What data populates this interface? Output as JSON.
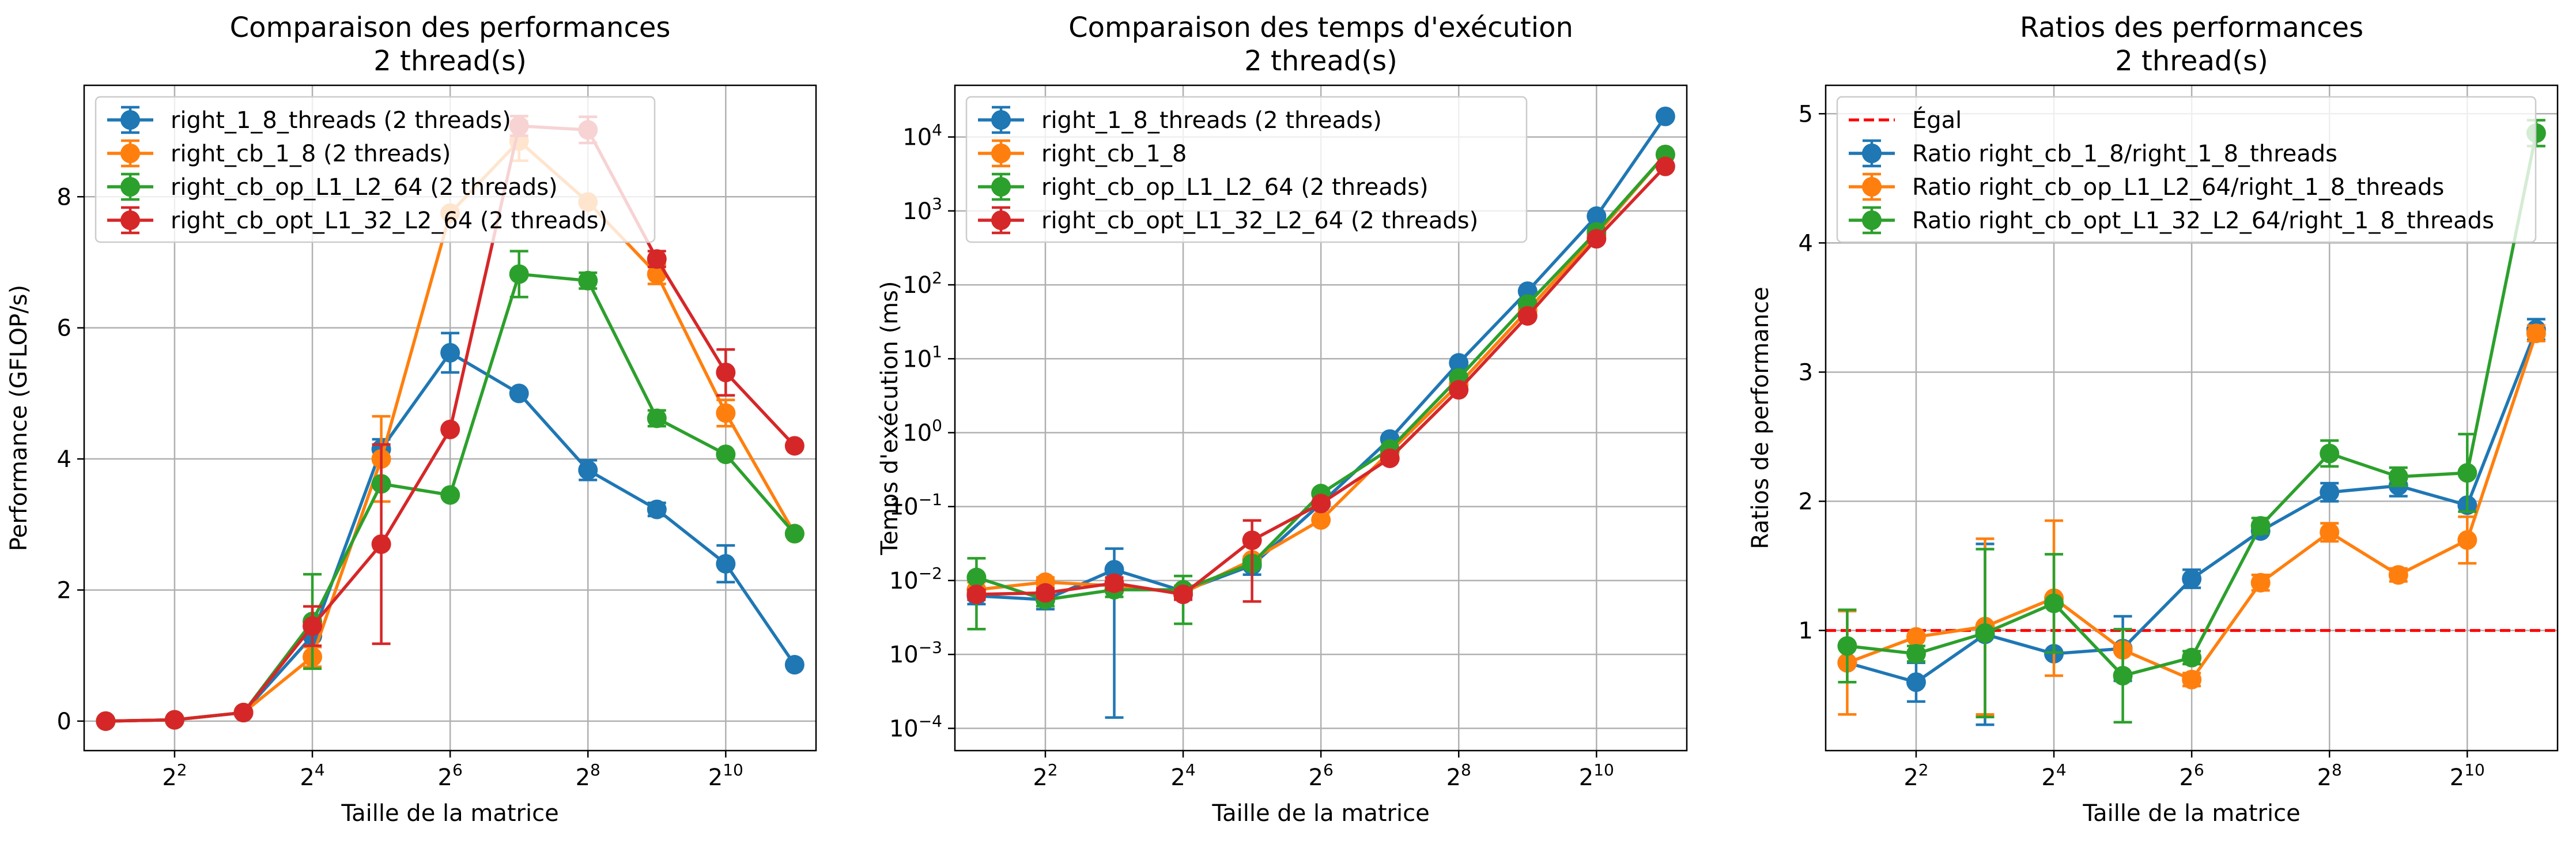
{
  "chart_data": [
    {
      "type": "line",
      "title": "Comparaison des performances",
      "subtitle": "2 thread(s)",
      "xlabel": "Taille de la matrice",
      "ylabel": "Performance (GFLOP/s)",
      "x_scale": "log2",
      "y_scale": "linear",
      "x": [
        2,
        4,
        8,
        16,
        32,
        64,
        128,
        256,
        512,
        1024,
        2048
      ],
      "x_ticks": [
        4,
        16,
        64,
        256,
        1024
      ],
      "x_tick_labels": [
        {
          "base": "2",
          "exp": "2"
        },
        {
          "base": "2",
          "exp": "4"
        },
        {
          "base": "2",
          "exp": "6"
        },
        {
          "base": "2",
          "exp": "8"
        },
        {
          "base": "2",
          "exp": "10"
        }
      ],
      "xlim": [
        1.61,
        2540
      ],
      "ylim": [
        -0.45,
        9.7
      ],
      "y_ticks": [
        0,
        2,
        4,
        6,
        8
      ],
      "y_tick_labels": [
        "0",
        "2",
        "4",
        "6",
        "8"
      ],
      "grid": true,
      "legend_position": "upper-left",
      "series": [
        {
          "name": "right_1_8_threads (2 threads)",
          "color": "#1f77b4",
          "values": [
            0.0,
            0.02,
            0.13,
            1.3,
            4.15,
            5.62,
            5.0,
            3.83,
            3.23,
            2.4,
            0.86
          ],
          "err": [
            0.0,
            0.0,
            0.0,
            0.15,
            0.15,
            0.3,
            0.0,
            0.15,
            0.1,
            0.28,
            0.0
          ]
        },
        {
          "name": "right_cb_1_8 (2 threads)",
          "color": "#ff7f0e",
          "values": [
            0.0,
            0.02,
            0.13,
            0.98,
            4.0,
            7.75,
            8.85,
            7.92,
            6.82,
            4.7,
            2.86
          ],
          "err": [
            0.0,
            0.0,
            0.0,
            0.15,
            0.65,
            0.0,
            0.3,
            0.0,
            0.15,
            0.2,
            0.0
          ]
        },
        {
          "name": "right_cb_op_L1_L2_64 (2 threads)",
          "color": "#2ca02c",
          "values": [
            0.0,
            0.02,
            0.13,
            1.52,
            3.62,
            3.45,
            6.82,
            6.72,
            4.62,
            4.07,
            2.86
          ],
          "err": [
            0.0,
            0.0,
            0.0,
            0.72,
            0.0,
            0.0,
            0.35,
            0.12,
            0.12,
            0.0,
            0.0
          ]
        },
        {
          "name": "right_cb_opt_L1_32_L2_64 (2 threads)",
          "color": "#d62728",
          "values": [
            0.0,
            0.02,
            0.13,
            1.45,
            2.7,
            4.45,
            9.08,
            9.02,
            7.05,
            5.32,
            4.2
          ],
          "err": [
            0.0,
            0.0,
            0.0,
            0.3,
            1.52,
            0.0,
            0.15,
            0.2,
            0.12,
            0.35,
            0.0
          ]
        }
      ]
    },
    {
      "type": "line",
      "title": "Comparaison des temps d'exécution",
      "subtitle": "2 thread(s)",
      "xlabel": "Taille de la matrice",
      "ylabel": "Temps d'exécution (ms)",
      "x_scale": "log2",
      "y_scale": "log10",
      "x": [
        2,
        4,
        8,
        16,
        32,
        64,
        128,
        256,
        512,
        1024,
        2048
      ],
      "x_ticks": [
        4,
        16,
        64,
        256,
        1024
      ],
      "x_tick_labels": [
        {
          "base": "2",
          "exp": "2"
        },
        {
          "base": "2",
          "exp": "4"
        },
        {
          "base": "2",
          "exp": "6"
        },
        {
          "base": "2",
          "exp": "8"
        },
        {
          "base": "2",
          "exp": "10"
        }
      ],
      "xlim": [
        1.61,
        2540
      ],
      "ylim": [
        5e-05,
        50000
      ],
      "y_ticks": [
        0.0001,
        0.001,
        0.01,
        0.1,
        1,
        10,
        100,
        1000,
        10000
      ],
      "y_tick_labels": [
        {
          "base": "10",
          "exp": "−4"
        },
        {
          "base": "10",
          "exp": "−3"
        },
        {
          "base": "10",
          "exp": "−2"
        },
        {
          "base": "10",
          "exp": "−1"
        },
        {
          "base": "10",
          "exp": "0"
        },
        {
          "base": "10",
          "exp": "1"
        },
        {
          "base": "10",
          "exp": "2"
        },
        {
          "base": "10",
          "exp": "3"
        },
        {
          "base": "10",
          "exp": "4"
        }
      ],
      "grid": true,
      "legend_position": "upper-left",
      "series": [
        {
          "name": "right_1_8_threads (2 threads)",
          "color": "#1f77b4",
          "values": [
            0.0062,
            0.0055,
            0.014,
            0.0072,
            0.016,
            0.11,
            0.82,
            8.8,
            82,
            850,
            19000
          ],
          "err_low": [
            0.0048,
            0.0041,
            0.00014,
            0.006,
            0.012,
            0.11,
            0.82,
            8.8,
            82,
            850,
            19000
          ],
          "err_high": [
            0.0076,
            0.0069,
            0.027,
            0.0084,
            0.02,
            0.11,
            0.82,
            8.8,
            82,
            850,
            19000
          ]
        },
        {
          "name": "right_cb_1_8",
          "color": "#ff7f0e",
          "values": [
            0.0075,
            0.0095,
            0.0085,
            0.0068,
            0.019,
            0.066,
            0.55,
            4.5,
            45,
            480,
            5800
          ],
          "err_low": [
            0.0055,
            0.008,
            0.007,
            0.0055,
            0.017,
            0.066,
            0.55,
            4.5,
            45,
            480,
            5800
          ],
          "err_high": [
            0.0095,
            0.011,
            0.0105,
            0.0085,
            0.021,
            0.066,
            0.55,
            4.5,
            45,
            480,
            5800
          ]
        },
        {
          "name": "right_cb_op_L1_L2_64 (2 threads)",
          "color": "#2ca02c",
          "values": [
            0.011,
            0.0055,
            0.0075,
            0.0075,
            0.017,
            0.15,
            0.6,
            5.5,
            55,
            520,
            5800
          ],
          "err_low": [
            0.0022,
            0.0045,
            0.006,
            0.0026,
            0.015,
            0.15,
            0.6,
            5.5,
            55,
            520,
            5800
          ],
          "err_high": [
            0.02,
            0.0065,
            0.0095,
            0.0115,
            0.019,
            0.15,
            0.6,
            5.5,
            55,
            520,
            5800
          ]
        },
        {
          "name": "right_cb_opt_L1_32_L2_64 (2 threads)",
          "color": "#d62728",
          "values": [
            0.0065,
            0.0068,
            0.0092,
            0.0065,
            0.035,
            0.11,
            0.45,
            3.8,
            38,
            420,
            4000
          ],
          "err_low": [
            0.0055,
            0.0058,
            0.0075,
            0.0055,
            0.0052,
            0.11,
            0.45,
            3.8,
            38,
            420,
            4000
          ],
          "err_high": [
            0.0075,
            0.0078,
            0.011,
            0.0075,
            0.065,
            0.11,
            0.45,
            3.8,
            38,
            420,
            4000
          ]
        }
      ]
    },
    {
      "type": "line",
      "title": "Ratios des performances",
      "subtitle": "2 thread(s)",
      "xlabel": "Taille de la matrice",
      "ylabel": "Ratios de performance",
      "x_scale": "log2",
      "y_scale": "linear",
      "x": [
        2,
        4,
        8,
        16,
        32,
        64,
        128,
        256,
        512,
        1024,
        2048
      ],
      "x_ticks": [
        4,
        16,
        64,
        256,
        1024
      ],
      "x_tick_labels": [
        {
          "base": "2",
          "exp": "2"
        },
        {
          "base": "2",
          "exp": "4"
        },
        {
          "base": "2",
          "exp": "6"
        },
        {
          "base": "2",
          "exp": "8"
        },
        {
          "base": "2",
          "exp": "10"
        }
      ],
      "xlim": [
        1.61,
        2540
      ],
      "ylim": [
        0.07,
        5.22
      ],
      "y_ticks": [
        1,
        2,
        3,
        4,
        5
      ],
      "y_tick_labels": [
        "1",
        "2",
        "3",
        "4",
        "5"
      ],
      "grid": true,
      "legend_position": "upper-left",
      "reference_line": {
        "name": "Égal",
        "y": 1,
        "color": "#ff0000",
        "style": "dashed"
      },
      "series": [
        {
          "name": "Ratio right_cb_1_8/right_1_8_threads",
          "color": "#1f77b4",
          "values": [
            0.75,
            0.6,
            0.97,
            0.82,
            0.86,
            1.4,
            1.77,
            2.07,
            2.12,
            1.97,
            3.33
          ],
          "err": [
            0.0,
            0.15,
            0.7,
            0.0,
            0.25,
            0.07,
            0.0,
            0.07,
            0.08,
            0.0,
            0.08
          ]
        },
        {
          "name": "Ratio right_cb_op_L1_L2_64/right_1_8_threads",
          "color": "#ff7f0e",
          "values": [
            0.75,
            0.95,
            1.03,
            1.25,
            0.85,
            0.62,
            1.37,
            1.76,
            1.43,
            1.7,
            3.3
          ],
          "err": [
            0.4,
            0.0,
            0.68,
            0.6,
            0.0,
            0.05,
            0.06,
            0.07,
            0.05,
            0.18,
            0.06
          ]
        },
        {
          "name": "Ratio right_cb_opt_L1_32_L2_64/right_1_8_threads",
          "color": "#2ca02c",
          "values": [
            0.88,
            0.82,
            0.98,
            1.21,
            0.65,
            0.79,
            1.81,
            2.37,
            2.19,
            2.22,
            4.85
          ],
          "err": [
            0.28,
            0.06,
            0.65,
            0.38,
            0.36,
            0.05,
            0.06,
            0.1,
            0.07,
            0.3,
            0.1
          ]
        }
      ]
    }
  ]
}
